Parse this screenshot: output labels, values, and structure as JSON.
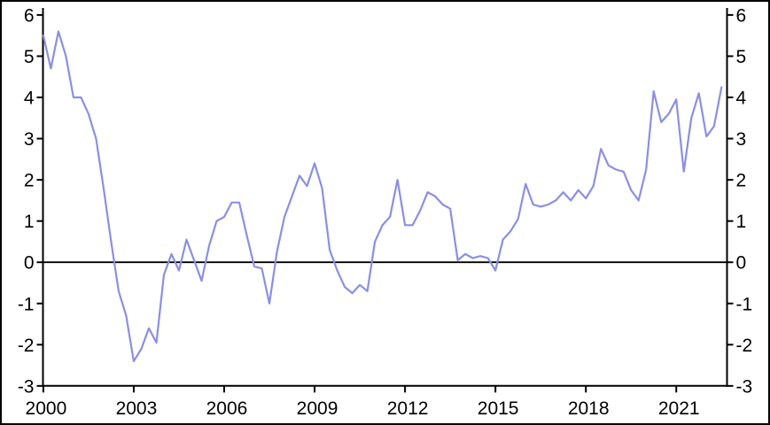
{
  "chart_data": {
    "type": "line",
    "title": "",
    "x_axis": {
      "tick_labels": [
        "2000",
        "2003",
        "2006",
        "2009",
        "2012",
        "2015",
        "2018",
        "2021"
      ],
      "tick_interval_years": 3,
      "start": "2000-Q1",
      "end": "2022-Q3",
      "frequency": "quarterly"
    },
    "y_axis": {
      "ticks": [
        6,
        5,
        4,
        3,
        2,
        1,
        0,
        -1,
        -2,
        -3
      ],
      "range": [
        -3,
        6.15
      ],
      "sides": "both",
      "zero_line": true
    },
    "series": [
      {
        "name": "main-series",
        "color": "#8b8fe4",
        "values": [
          5.5,
          4.7,
          5.6,
          5.0,
          4.0,
          4.0,
          3.6,
          3.0,
          1.8,
          0.5,
          -0.7,
          -1.3,
          -2.4,
          -2.1,
          -1.6,
          -1.95,
          -0.3,
          0.2,
          -0.2,
          0.55,
          0.05,
          -0.45,
          0.4,
          1.0,
          1.1,
          1.45,
          1.45,
          0.65,
          -0.1,
          -0.15,
          -1.0,
          0.25,
          1.1,
          1.6,
          2.1,
          1.85,
          2.4,
          1.8,
          0.3,
          -0.2,
          -0.6,
          -0.75,
          -0.55,
          -0.7,
          0.5,
          0.9,
          1.1,
          2.0,
          0.9,
          0.9,
          1.25,
          1.7,
          1.6,
          1.4,
          1.3,
          0.05,
          0.2,
          0.1,
          0.15,
          0.1,
          -0.2,
          0.55,
          0.75,
          1.05,
          1.9,
          1.4,
          1.35,
          1.4,
          1.5,
          1.7,
          1.5,
          1.75,
          1.55,
          1.85,
          2.75,
          2.35,
          2.25,
          2.2,
          1.75,
          1.5,
          2.25,
          4.15,
          3.4,
          3.6,
          3.95,
          2.2,
          3.5,
          4.1,
          3.05,
          3.3,
          4.25
        ]
      }
    ],
    "colors": {
      "axis": "#000000",
      "background": "#ffffff",
      "border": "#000000",
      "label": "#000000"
    }
  }
}
